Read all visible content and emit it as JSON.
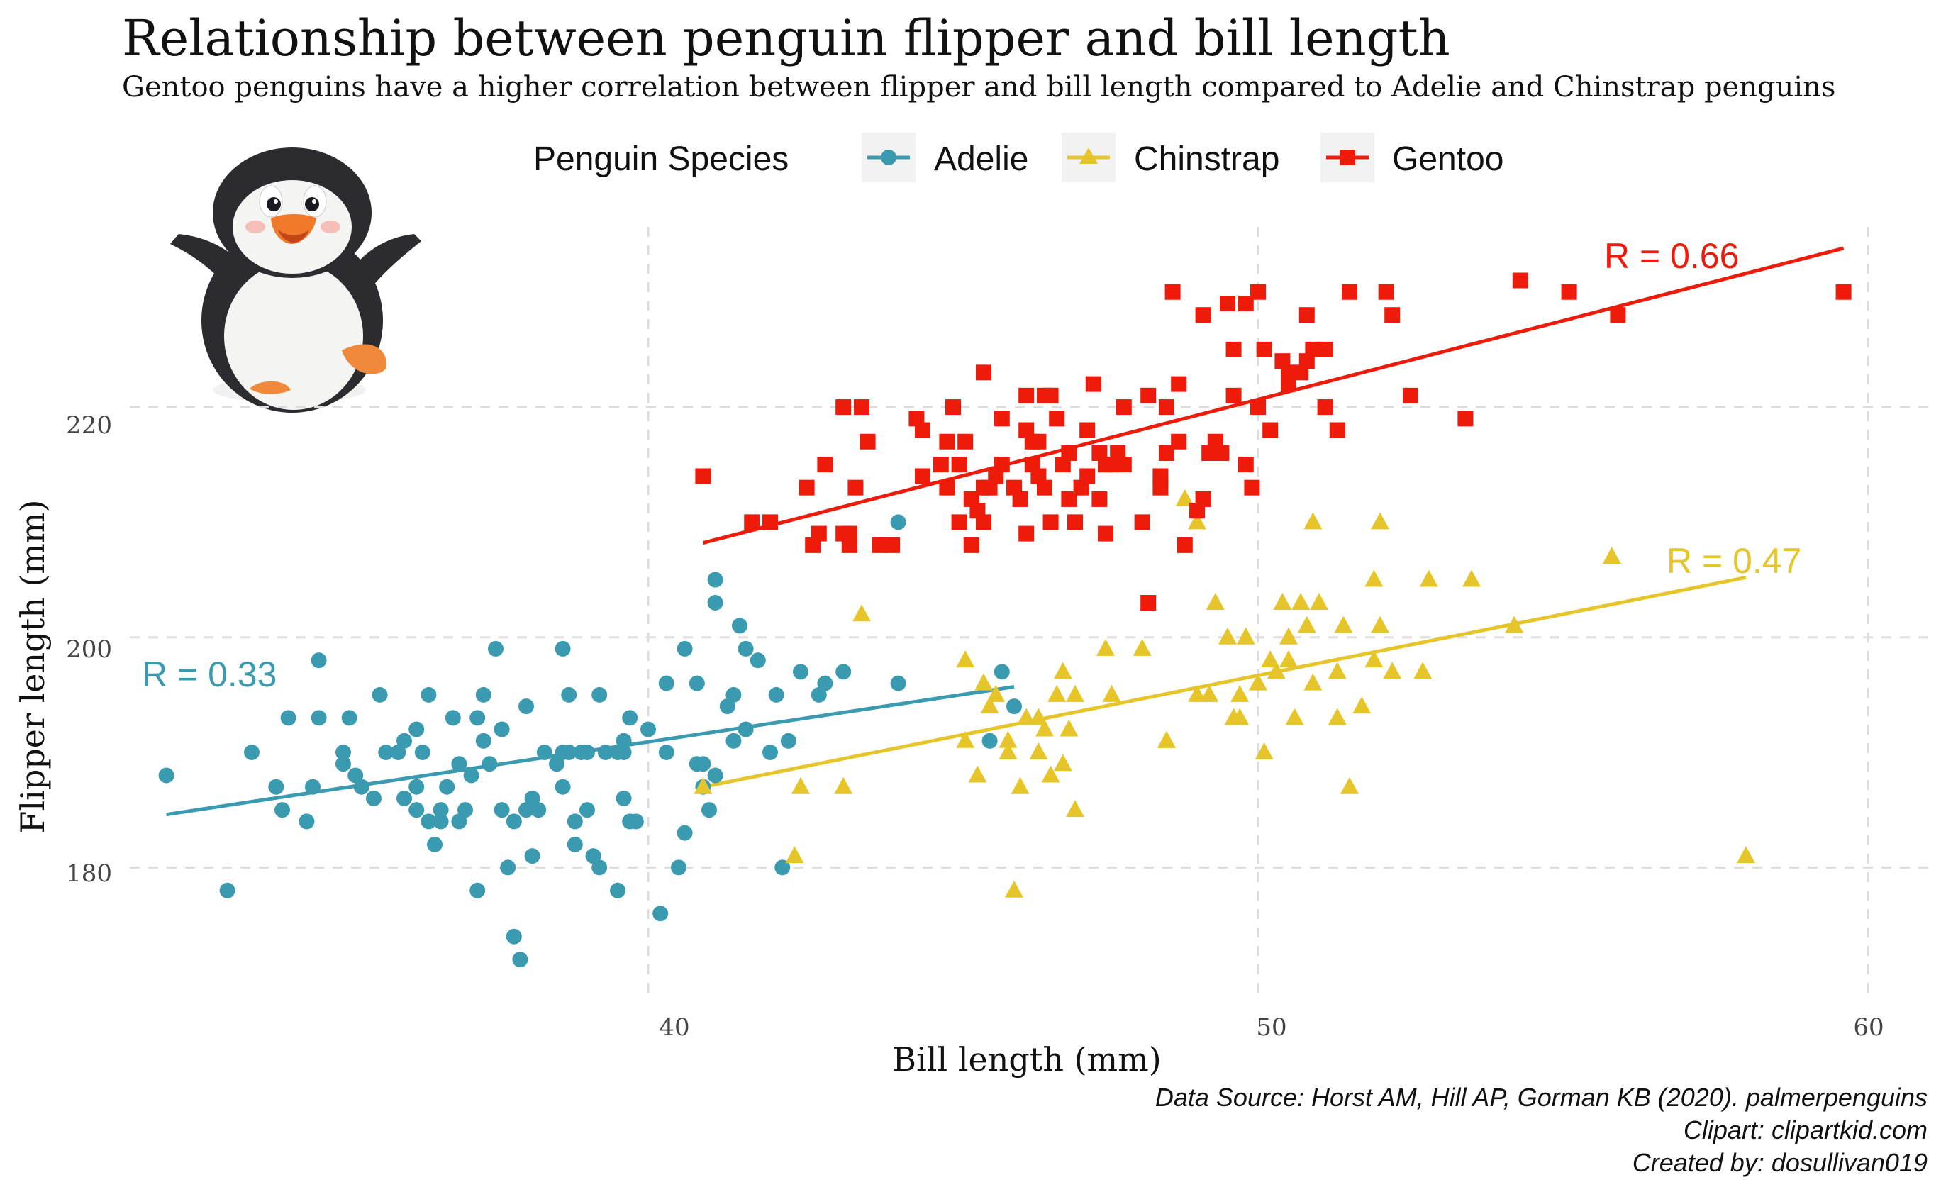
{
  "title": "Relationship between penguin flipper and bill length",
  "subtitle": "Gentoo penguins have a higher correlation between flipper and bill length compared to Adelie and Chinstrap penguins",
  "legend": {
    "title": "Penguin Species",
    "items": [
      {
        "label": "Adelie",
        "color": "#3a9ab0",
        "shape": "circle"
      },
      {
        "label": "Chinstrap",
        "color": "#e6c52b",
        "shape": "triangle"
      },
      {
        "label": "Gentoo",
        "color": "#ee1a0a",
        "shape": "square"
      }
    ]
  },
  "captions": {
    "line1": "Data Source: Horst AM, Hill AP, Gorman KB (2020). palmerpenguins",
    "line2": "Clipart: clipartkid.com",
    "line3": "Created by: dosullivan019"
  },
  "illustration": "penguin-clipart",
  "chart_data": {
    "type": "scatter",
    "xlabel": "Bill length (mm)",
    "ylabel": "Flipper length (mm)",
    "xlim": [
      31.5,
      61
    ],
    "ylim": [
      168.5,
      237.5
    ],
    "x_ticks": [
      40,
      50,
      60
    ],
    "y_ticks": [
      180,
      200,
      220
    ],
    "x_tick_labels": [
      "40",
      "50",
      "60"
    ],
    "y_tick_labels": [
      "180",
      "200",
      "220"
    ],
    "grid": true,
    "legend_position": "top",
    "series": [
      {
        "name": "Adelie",
        "color": "#3a9ab0",
        "marker": "circle",
        "r_label": "R =  0.33",
        "fit": [
          [
            32.1,
            184.6
          ],
          [
            46.0,
            195.7
          ]
        ],
        "points": [
          [
            32.1,
            188
          ],
          [
            33.1,
            178
          ],
          [
            33.5,
            190
          ],
          [
            34.0,
            185
          ],
          [
            34.4,
            184
          ],
          [
            34.5,
            187
          ],
          [
            34.6,
            198
          ],
          [
            34.6,
            193
          ],
          [
            35.0,
            190
          ],
          [
            35.1,
            193
          ],
          [
            35.2,
            188
          ],
          [
            35.3,
            187
          ],
          [
            35.5,
            186
          ],
          [
            35.6,
            195
          ],
          [
            35.7,
            190
          ],
          [
            35.9,
            190
          ],
          [
            36.0,
            186
          ],
          [
            36.0,
            191
          ],
          [
            36.2,
            187
          ],
          [
            36.2,
            185
          ],
          [
            36.3,
            190
          ],
          [
            36.4,
            184
          ],
          [
            36.5,
            182
          ],
          [
            36.6,
            185
          ],
          [
            36.7,
            187
          ],
          [
            36.8,
            193
          ],
          [
            36.9,
            189
          ],
          [
            37.0,
            185
          ],
          [
            37.2,
            193
          ],
          [
            37.2,
            178
          ],
          [
            37.3,
            191
          ],
          [
            37.3,
            195
          ],
          [
            37.5,
            199
          ],
          [
            37.6,
            185
          ],
          [
            37.7,
            180
          ],
          [
            37.8,
            184
          ],
          [
            37.8,
            174
          ],
          [
            37.9,
            172
          ],
          [
            38.0,
            185
          ],
          [
            38.1,
            181
          ],
          [
            38.2,
            185
          ],
          [
            38.3,
            190
          ],
          [
            38.5,
            189
          ],
          [
            38.6,
            190
          ],
          [
            38.6,
            187
          ],
          [
            38.7,
            195
          ],
          [
            38.8,
            182
          ],
          [
            38.9,
            190
          ],
          [
            39.0,
            190
          ],
          [
            39.1,
            181
          ],
          [
            39.2,
            195
          ],
          [
            39.3,
            190
          ],
          [
            39.5,
            178
          ],
          [
            39.6,
            190
          ],
          [
            39.7,
            193
          ],
          [
            39.8,
            184
          ],
          [
            40.0,
            192
          ],
          [
            40.2,
            176
          ],
          [
            40.3,
            196
          ],
          [
            40.5,
            180
          ],
          [
            40.6,
            183
          ],
          [
            40.8,
            196
          ],
          [
            40.9,
            187
          ],
          [
            41.0,
            185
          ],
          [
            41.1,
            188
          ],
          [
            41.3,
            194
          ],
          [
            41.4,
            191
          ],
          [
            41.5,
            201
          ],
          [
            41.6,
            192
          ],
          [
            41.8,
            198
          ],
          [
            42.0,
            190
          ],
          [
            42.2,
            180
          ],
          [
            42.3,
            191
          ],
          [
            42.5,
            197
          ],
          [
            42.8,
            195
          ],
          [
            42.9,
            196
          ],
          [
            43.2,
            197
          ],
          [
            44.1,
            196
          ],
          [
            44.1,
            210
          ],
          [
            45.6,
            191
          ],
          [
            45.8,
            197
          ],
          [
            46.0,
            194
          ],
          [
            40.6,
            199
          ],
          [
            39.6,
            186
          ],
          [
            39.7,
            184
          ],
          [
            36.6,
            184
          ],
          [
            33.9,
            187
          ],
          [
            34.1,
            193
          ],
          [
            35.0,
            189
          ],
          [
            36.4,
            195
          ],
          [
            37.4,
            189
          ],
          [
            38.0,
            194
          ],
          [
            38.1,
            186
          ],
          [
            38.7,
            190
          ],
          [
            39.0,
            185
          ],
          [
            39.5,
            190
          ],
          [
            40.3,
            190
          ],
          [
            40.9,
            189
          ],
          [
            41.1,
            205
          ],
          [
            41.1,
            203
          ],
          [
            41.4,
            195
          ],
          [
            41.6,
            199
          ],
          [
            42.1,
            195
          ],
          [
            36.2,
            192
          ],
          [
            37.1,
            188
          ],
          [
            37.6,
            192
          ],
          [
            38.8,
            184
          ],
          [
            39.6,
            191
          ],
          [
            36.9,
            184
          ],
          [
            38.6,
            199
          ],
          [
            39.2,
            180
          ],
          [
            40.8,
            189
          ]
        ]
      },
      {
        "name": "Chinstrap",
        "color": "#e6c52b",
        "marker": "triangle",
        "r_label": "R =  0.47",
        "fit": [
          [
            40.9,
            187.0
          ],
          [
            58.0,
            205.2
          ]
        ],
        "points": [
          [
            40.9,
            187
          ],
          [
            42.4,
            181
          ],
          [
            42.5,
            187
          ],
          [
            43.2,
            187
          ],
          [
            43.5,
            202
          ],
          [
            45.2,
            198
          ],
          [
            45.2,
            191
          ],
          [
            45.4,
            188
          ],
          [
            45.5,
            196
          ],
          [
            45.6,
            194
          ],
          [
            45.7,
            195
          ],
          [
            45.9,
            190
          ],
          [
            46.0,
            178
          ],
          [
            46.1,
            187
          ],
          [
            46.2,
            193
          ],
          [
            46.4,
            190
          ],
          [
            46.5,
            192
          ],
          [
            46.6,
            188
          ],
          [
            46.7,
            195
          ],
          [
            46.8,
            189
          ],
          [
            46.9,
            192
          ],
          [
            47.0,
            185
          ],
          [
            47.5,
            199
          ],
          [
            48.1,
            199
          ],
          [
            48.5,
            191
          ],
          [
            48.8,
            212
          ],
          [
            49.0,
            210
          ],
          [
            49.2,
            195
          ],
          [
            49.3,
            203
          ],
          [
            49.5,
            200
          ],
          [
            49.6,
            193
          ],
          [
            49.7,
            195
          ],
          [
            49.8,
            200
          ],
          [
            50.0,
            196
          ],
          [
            50.1,
            190
          ],
          [
            50.2,
            198
          ],
          [
            50.3,
            197
          ],
          [
            50.4,
            203
          ],
          [
            50.5,
            200
          ],
          [
            50.6,
            193
          ],
          [
            50.7,
            203
          ],
          [
            50.8,
            201
          ],
          [
            50.9,
            196
          ],
          [
            51.0,
            203
          ],
          [
            51.3,
            197
          ],
          [
            51.4,
            201
          ],
          [
            51.5,
            187
          ],
          [
            51.7,
            194
          ],
          [
            51.9,
            205
          ],
          [
            52.0,
            210
          ],
          [
            52.2,
            197
          ],
          [
            52.7,
            197
          ],
          [
            52.8,
            205
          ],
          [
            53.5,
            205
          ],
          [
            54.2,
            201
          ],
          [
            55.8,
            207
          ],
          [
            58.0,
            181
          ],
          [
            49.0,
            195
          ],
          [
            50.5,
            198
          ],
          [
            47.6,
            195
          ],
          [
            45.9,
            191
          ],
          [
            46.8,
            197
          ],
          [
            49.7,
            193
          ],
          [
            52.0,
            201
          ],
          [
            51.3,
            193
          ],
          [
            50.9,
            210
          ],
          [
            51.9,
            198
          ],
          [
            48.5,
            191
          ],
          [
            46.4,
            193
          ],
          [
            47.0,
            195
          ]
        ]
      },
      {
        "name": "Gentoo",
        "color": "#ee1a0a",
        "marker": "square",
        "r_label": "R =  0.66",
        "fit": [
          [
            40.9,
            208.2
          ],
          [
            59.6,
            233.8
          ]
        ],
        "points": [
          [
            40.9,
            214
          ],
          [
            41.7,
            210
          ],
          [
            42.0,
            210
          ],
          [
            42.6,
            213
          ],
          [
            42.7,
            208
          ],
          [
            42.8,
            209
          ],
          [
            42.9,
            215
          ],
          [
            43.2,
            209
          ],
          [
            43.3,
            208
          ],
          [
            43.4,
            213
          ],
          [
            43.5,
            220
          ],
          [
            43.6,
            217
          ],
          [
            43.8,
            208
          ],
          [
            44.0,
            208
          ],
          [
            44.4,
            219
          ],
          [
            44.5,
            214
          ],
          [
            44.9,
            217
          ],
          [
            45.0,
            220
          ],
          [
            45.1,
            215
          ],
          [
            45.2,
            217
          ],
          [
            45.3,
            212
          ],
          [
            45.4,
            211
          ],
          [
            45.5,
            210
          ],
          [
            45.5,
            223
          ],
          [
            45.7,
            214
          ],
          [
            45.8,
            215
          ],
          [
            46.1,
            212
          ],
          [
            46.2,
            221
          ],
          [
            46.3,
            217
          ],
          [
            46.4,
            214
          ],
          [
            46.5,
            213
          ],
          [
            46.5,
            221
          ],
          [
            46.6,
            210
          ],
          [
            46.8,
            215
          ],
          [
            46.9,
            216
          ],
          [
            47.2,
            214
          ],
          [
            47.3,
            222
          ],
          [
            47.4,
            212
          ],
          [
            47.5,
            209
          ],
          [
            47.6,
            215
          ],
          [
            47.7,
            216
          ],
          [
            47.8,
            215
          ],
          [
            48.1,
            210
          ],
          [
            48.2,
            221
          ],
          [
            48.4,
            214
          ],
          [
            48.5,
            220
          ],
          [
            48.6,
            230
          ],
          [
            48.7,
            222
          ],
          [
            48.8,
            208
          ],
          [
            49.0,
            211
          ],
          [
            49.1,
            228
          ],
          [
            49.2,
            216
          ],
          [
            49.3,
            217
          ],
          [
            49.5,
            229
          ],
          [
            49.6,
            225
          ],
          [
            49.8,
            229
          ],
          [
            49.9,
            213
          ],
          [
            50.0,
            230
          ],
          [
            50.1,
            225
          ],
          [
            50.2,
            218
          ],
          [
            50.4,
            224
          ],
          [
            50.5,
            222
          ],
          [
            50.7,
            223
          ],
          [
            50.8,
            228
          ],
          [
            51.1,
            220
          ],
          [
            51.3,
            218
          ],
          [
            51.5,
            230
          ],
          [
            52.1,
            230
          ],
          [
            52.2,
            228
          ],
          [
            52.5,
            221
          ],
          [
            53.4,
            219
          ],
          [
            54.3,
            231
          ],
          [
            55.1,
            230
          ],
          [
            55.9,
            228
          ],
          [
            59.6,
            230
          ],
          [
            46.2,
            209
          ],
          [
            45.1,
            210
          ],
          [
            46.0,
            213
          ],
          [
            47.4,
            216
          ],
          [
            46.7,
            219
          ],
          [
            48.5,
            216
          ],
          [
            49.1,
            212
          ],
          [
            45.3,
            208
          ],
          [
            44.9,
            213
          ],
          [
            46.4,
            217
          ],
          [
            47.8,
            220
          ],
          [
            48.4,
            213
          ],
          [
            50.0,
            220
          ],
          [
            51.1,
            225
          ],
          [
            49.4,
            216
          ],
          [
            45.5,
            213
          ],
          [
            46.9,
            212
          ],
          [
            50.8,
            224
          ],
          [
            48.7,
            217
          ],
          [
            47.2,
            218
          ],
          [
            43.3,
            209
          ],
          [
            44.5,
            218
          ],
          [
            46.6,
            221
          ],
          [
            47.1,
            213
          ],
          [
            49.6,
            221
          ],
          [
            45.8,
            219
          ],
          [
            47.0,
            210
          ],
          [
            48.2,
            203
          ],
          [
            46.3,
            215
          ],
          [
            50.9,
            225
          ],
          [
            49.8,
            215
          ],
          [
            43.2,
            220
          ],
          [
            44.8,
            215
          ],
          [
            46.2,
            218
          ],
          [
            47.5,
            215
          ],
          [
            50.5,
            223
          ],
          [
            45.6,
            213
          ]
        ]
      }
    ]
  }
}
